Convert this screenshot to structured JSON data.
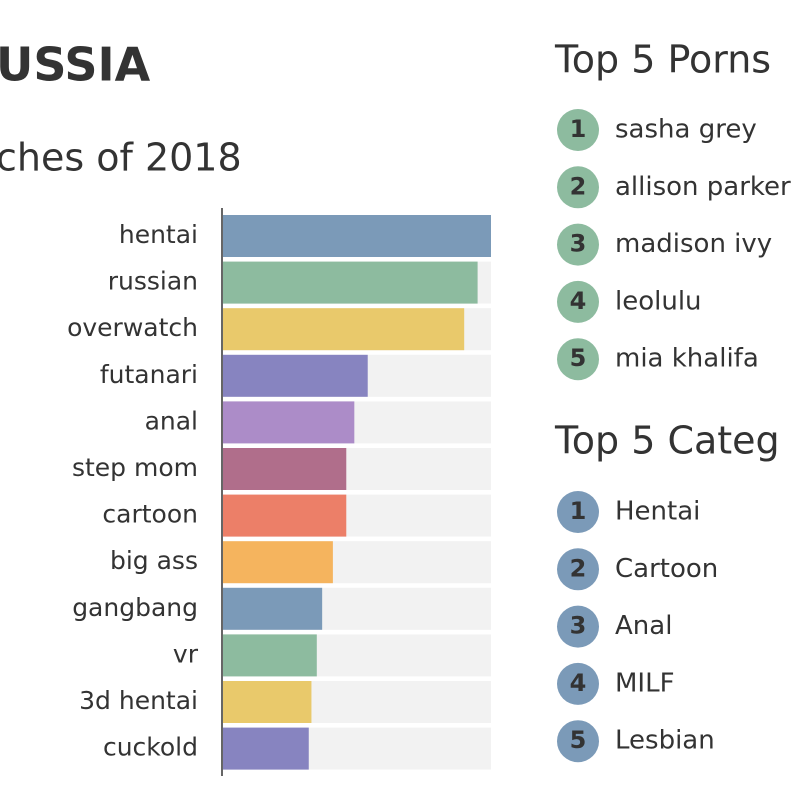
{
  "chart_data": {
    "type": "hbar",
    "title": "USSIA",
    "subtitle": "ches of 2018",
    "categories": [
      "hentai",
      "russian",
      "overwatch",
      "futanari",
      "anal",
      "step mom",
      "cartoon",
      "big ass",
      "gangbang",
      "vr",
      "3d hentai",
      "cuckold"
    ],
    "values": [
      100,
      95,
      90,
      54,
      49,
      46,
      46,
      41,
      37,
      35,
      33,
      32
    ],
    "colors": [
      "#7b9ab8",
      "#8dbb9f",
      "#e9c96b",
      "#8784c0",
      "#ac8cc8",
      "#b06e8b",
      "#ec7f68",
      "#f5b45e",
      "#7b9ab8",
      "#8dbb9f",
      "#e9c96b",
      "#8784c0"
    ],
    "xlim": [
      0,
      100
    ]
  },
  "top_pornstars": {
    "title": "Top 5 Porns",
    "color": "#8dbb9f",
    "items": [
      {
        "rank": 1,
        "name": "sasha grey"
      },
      {
        "rank": 2,
        "name": "allison parker"
      },
      {
        "rank": 3,
        "name": "madison ivy"
      },
      {
        "rank": 4,
        "name": "leolulu"
      },
      {
        "rank": 5,
        "name": "mia khalifa"
      }
    ]
  },
  "top_categories": {
    "title": "Top 5 Categ",
    "color": "#7b9ab8",
    "items": [
      {
        "rank": 1,
        "name": "Hentai"
      },
      {
        "rank": 2,
        "name": "Cartoon"
      },
      {
        "rank": 3,
        "name": "Anal"
      },
      {
        "rank": 4,
        "name": "MILF"
      },
      {
        "rank": 5,
        "name": "Lesbian"
      }
    ]
  }
}
